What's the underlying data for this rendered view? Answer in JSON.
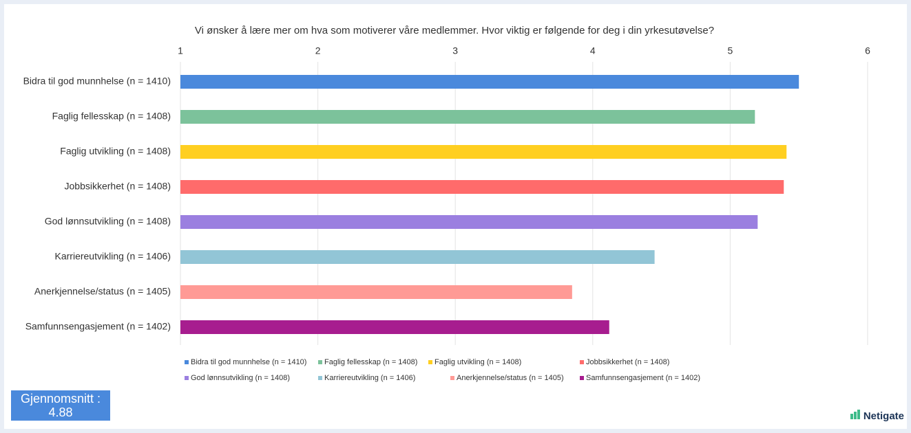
{
  "chart_data": {
    "type": "bar",
    "orientation": "horizontal",
    "title": "Vi ønsker å lære mer om hva som motiverer våre medlemmer. Hvor viktig er følgende for deg i din yrkesutøvelse?",
    "categories": [
      "Bidra til god munnhelse (n = 1410)",
      "Faglig fellesskap (n = 1408)",
      "Faglig utvikling (n = 1408)",
      "Jobbsikkerhet (n = 1408)",
      "God lønnsutvikling (n = 1408)",
      "Karriereutvikling (n = 1406)",
      "Anerkjennelse/status (n = 1405)",
      "Samfunnsengasjement (n = 1402)"
    ],
    "values": [
      5.5,
      5.18,
      5.41,
      5.39,
      5.2,
      4.45,
      3.85,
      4.12
    ],
    "colors": [
      "#4a89dc",
      "#7cc29b",
      "#ffcf21",
      "#ff6b6b",
      "#9b7fe0",
      "#92c5d6",
      "#ff9a95",
      "#a71d8f"
    ],
    "xlim": [
      1,
      6
    ],
    "xticks": [
      1,
      2,
      3,
      4,
      5,
      6
    ],
    "grid": true,
    "legend": "bottom"
  },
  "average_box": "Gjennomsnitt : 4.88",
  "brand": "Netigate"
}
